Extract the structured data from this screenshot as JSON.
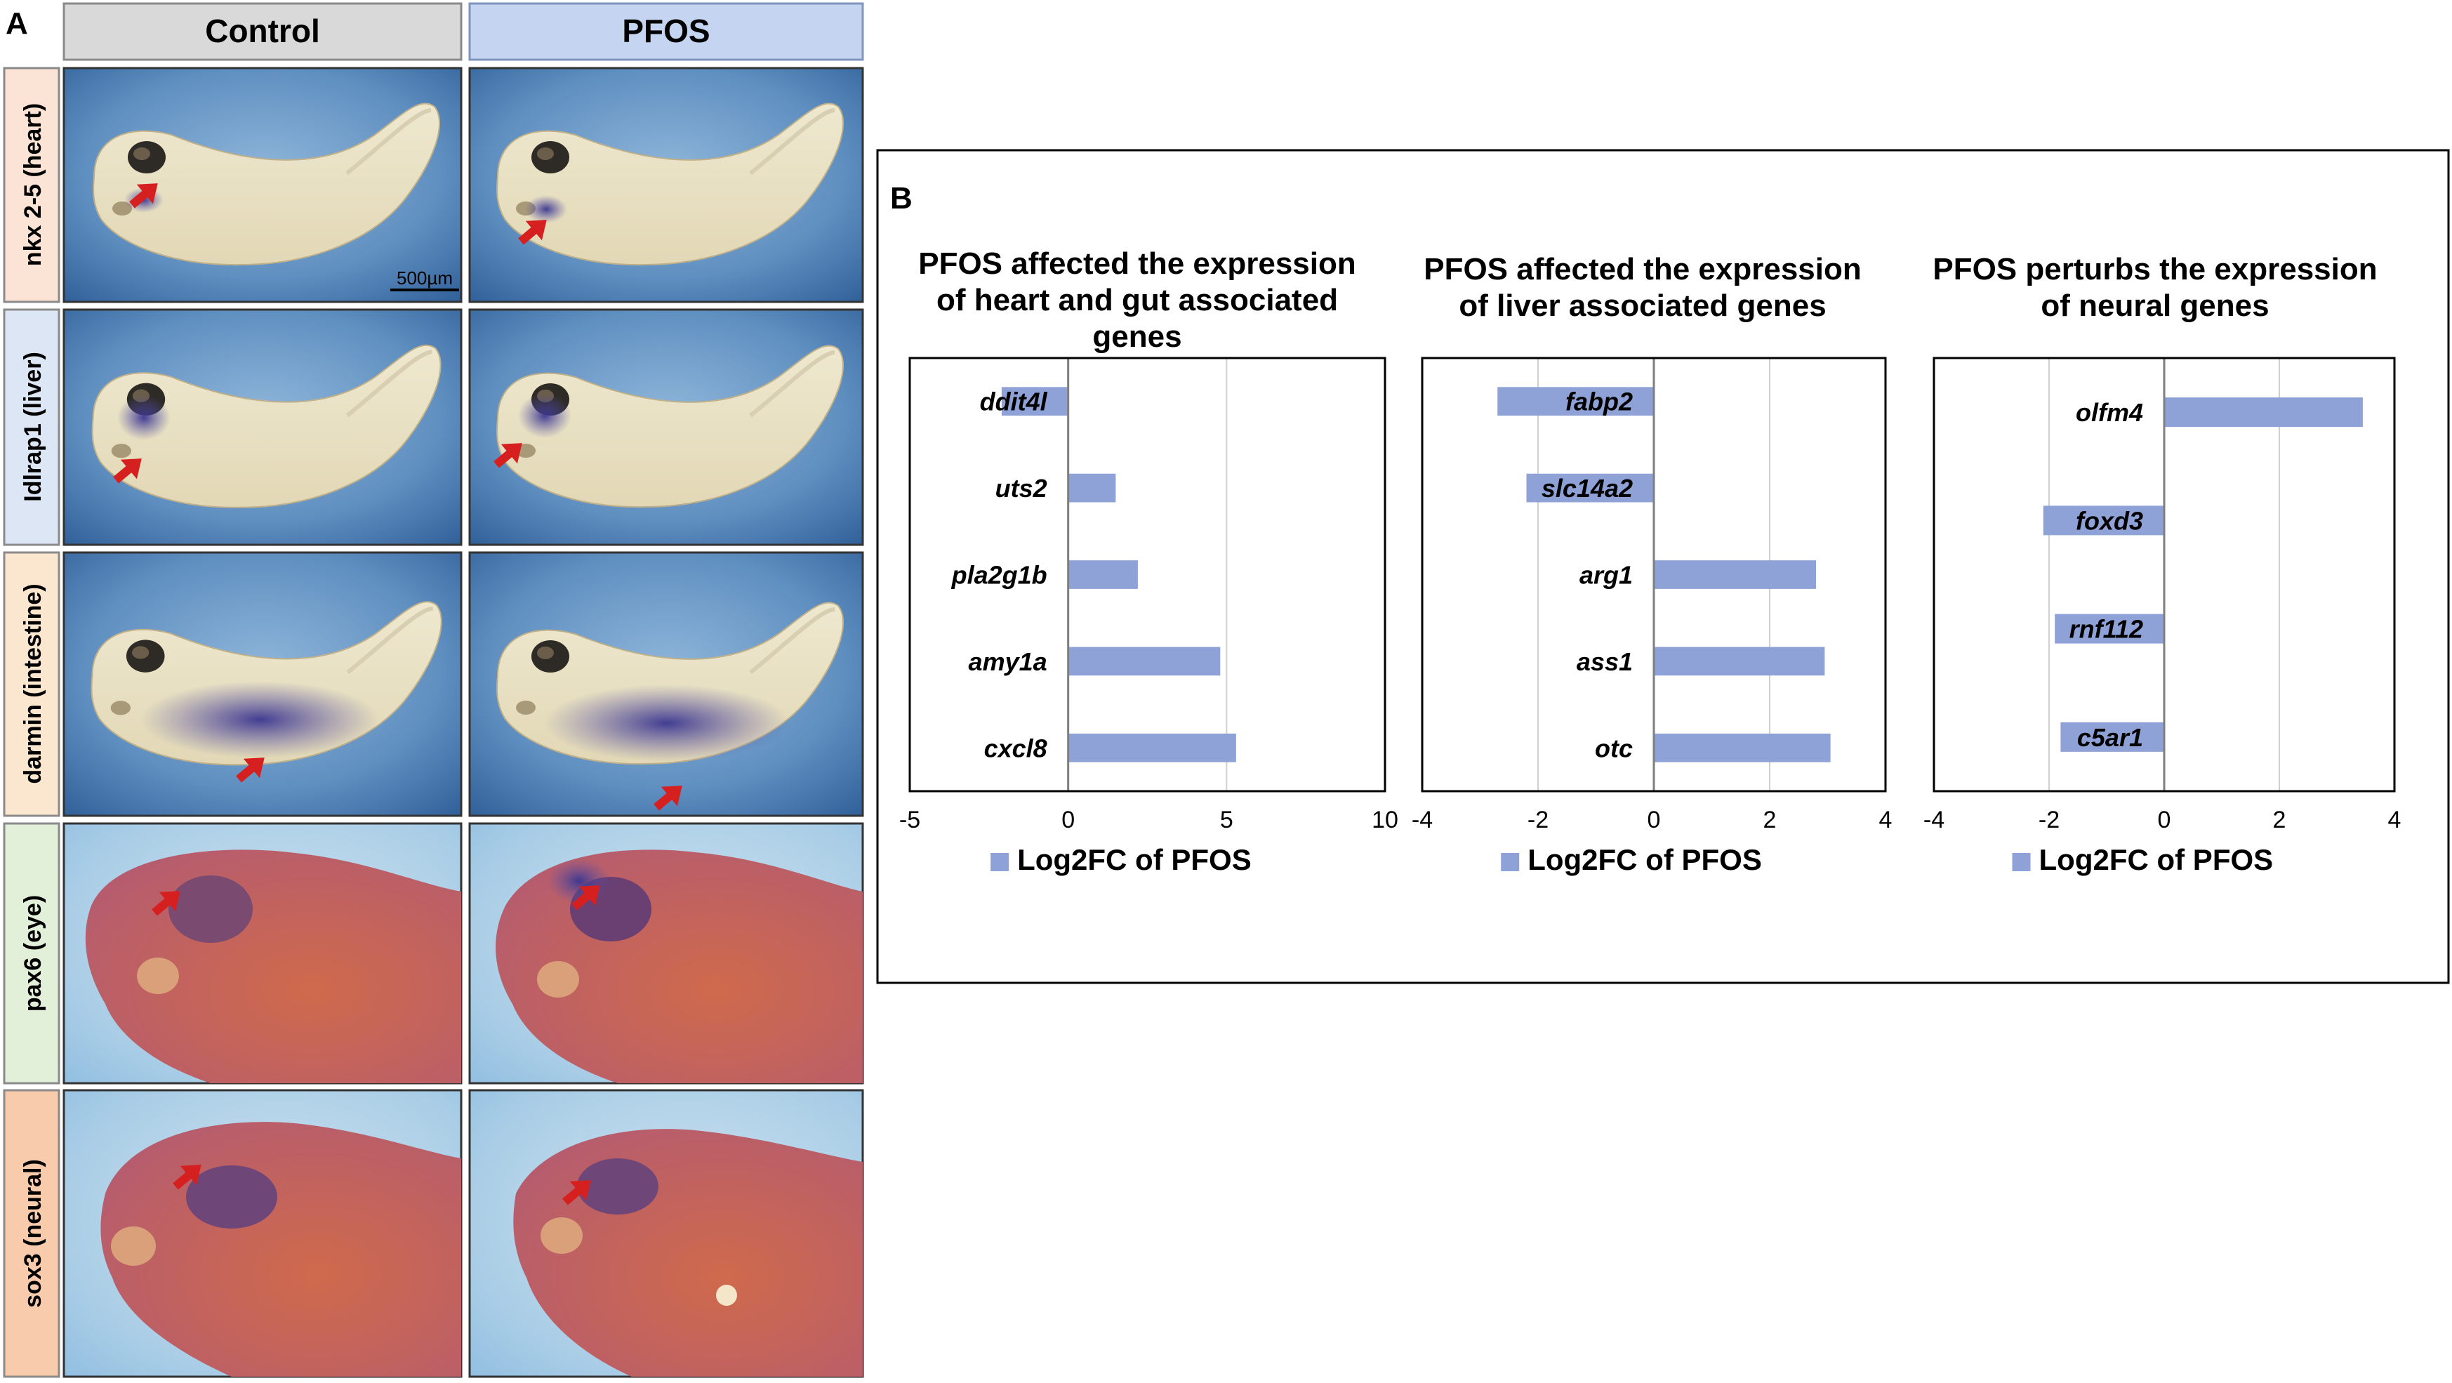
{
  "panel_a": {
    "letter": "A",
    "column_headers": [
      "Control",
      "PFOS"
    ],
    "row_labels": [
      "nkx 2-5 (heart)",
      "Idlrap1 (liver)",
      "darmin (intestine)",
      "pax6 (eye)",
      "sox3 (neural)"
    ],
    "scale_bar_label": "500µm"
  },
  "panel_b": {
    "letter": "B",
    "legend_label": "Log2FC of PFOS"
  },
  "colors": {
    "bar": "#8fa2d8",
    "control_header": "#d9d9d9",
    "pfos_header": "#c5d4f0",
    "arrow": "#d62020"
  },
  "chart_data": [
    {
      "type": "bar",
      "orientation": "horizontal",
      "title_lines": [
        "PFOS  affected the expression",
        "of heart and gut associated",
        "genes"
      ],
      "categories": [
        "ddit4l",
        "uts2",
        "pla2g1b",
        "amy1a",
        "cxcl8"
      ],
      "series": [
        {
          "name": "Log2FC of PFOS",
          "values": [
            -2.1,
            1.5,
            2.2,
            4.8,
            5.3
          ]
        }
      ],
      "xlim": [
        -5,
        10
      ],
      "xticks": [
        -5,
        0,
        5,
        10
      ],
      "grid": "vertical",
      "legend": "bottom"
    },
    {
      "type": "bar",
      "orientation": "horizontal",
      "title_lines": [
        "PFOS  affected the expression",
        "of liver associated genes"
      ],
      "categories": [
        "fabp2",
        "slc14a2",
        "arg1",
        "ass1",
        "otc"
      ],
      "series": [
        {
          "name": "Log2FC of PFOS",
          "values": [
            -2.7,
            -2.2,
            2.8,
            2.95,
            3.05
          ]
        }
      ],
      "xlim": [
        -4,
        4
      ],
      "xticks": [
        -4,
        -2,
        0,
        2,
        4
      ],
      "grid": "vertical",
      "legend": "bottom"
    },
    {
      "type": "bar",
      "orientation": "horizontal",
      "title_lines": [
        "PFOS  perturbs the expression",
        "of neural genes"
      ],
      "categories": [
        "olfm4",
        "foxd3",
        "rnf112",
        "c5ar1"
      ],
      "series": [
        {
          "name": "Log2FC of PFOS",
          "values": [
            3.45,
            -2.1,
            -1.9,
            -1.8
          ]
        }
      ],
      "xlim": [
        -4,
        4
      ],
      "xticks": [
        -4,
        -2,
        0,
        2,
        4
      ],
      "grid": "vertical",
      "legend": "bottom"
    }
  ]
}
